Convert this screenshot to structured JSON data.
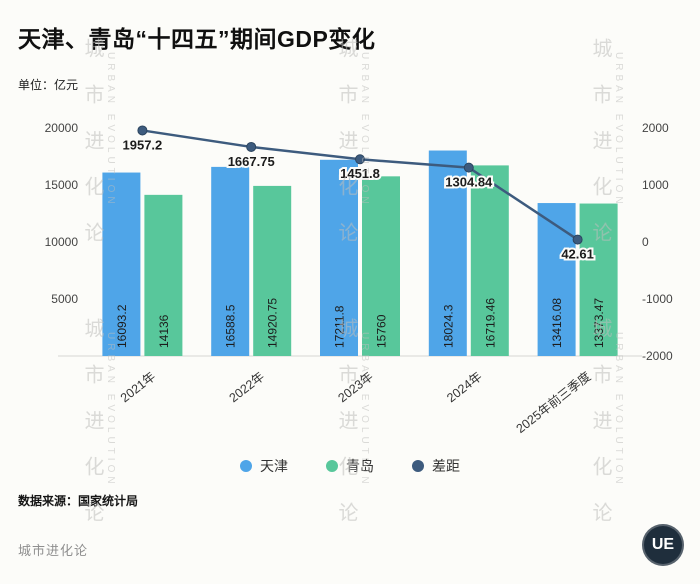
{
  "title": "天津、青岛“十四五”期间GDP变化",
  "unit_label": "单位：亿元",
  "source": "数据来源：国家统计局",
  "brand": {
    "name": "城市进化论",
    "logo": "UE"
  },
  "watermark": {
    "cn": "城市进化论",
    "en": "URBAN EVOLUTION"
  },
  "colors": {
    "tianjin": "#4fa5e8",
    "qingdao": "#58c79b",
    "gap": "#3d5b7e",
    "background": "#fcfcf9"
  },
  "chart_data": {
    "type": "bar+line",
    "title": "天津、青岛“十四五”期间GDP变化",
    "ylabel": "亿元",
    "categories": [
      "2021年",
      "2022年",
      "2023年",
      "2024年",
      "2025年前三季度"
    ],
    "series": [
      {
        "name": "天津",
        "type": "bar",
        "axis": "left",
        "values": [
          16093.2,
          16588.5,
          17211.8,
          18024.3,
          13416.08
        ]
      },
      {
        "name": "青岛",
        "type": "bar",
        "axis": "left",
        "values": [
          14136,
          14920.75,
          15760,
          16719.46,
          13373.47
        ]
      },
      {
        "name": "差距",
        "type": "line",
        "axis": "right",
        "values": [
          1957.2,
          1667.75,
          1451.8,
          1304.84,
          42.61
        ]
      }
    ],
    "left_axis": {
      "min": 0,
      "max": 20000,
      "ticks": [
        20000,
        15000,
        10000,
        5000
      ]
    },
    "right_axis": {
      "min": -2000,
      "max": 2000,
      "ticks": [
        2000,
        1000,
        0,
        -1000,
        -2000
      ]
    },
    "legend": [
      "天津",
      "青岛",
      "差距"
    ],
    "legend_position": "bottom",
    "grid": false
  }
}
